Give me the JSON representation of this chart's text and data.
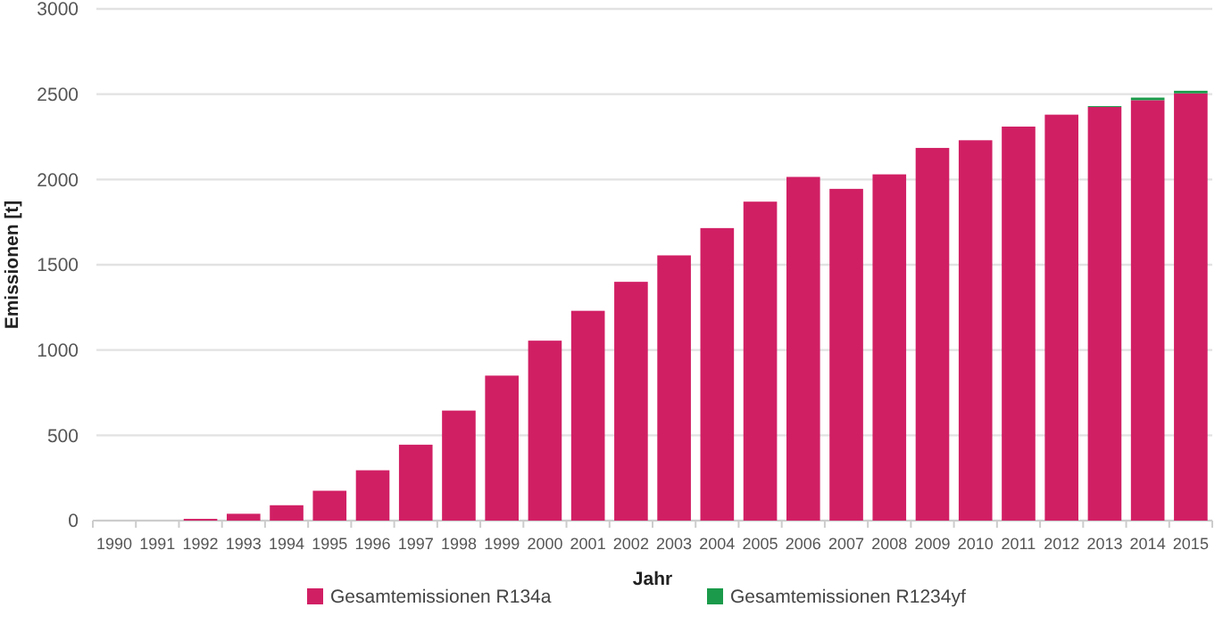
{
  "chart_data": {
    "type": "bar",
    "stacked": true,
    "xlabel": "Jahr",
    "ylabel": "Emissionen [t]",
    "categories": [
      "1990",
      "1991",
      "1992",
      "1993",
      "1994",
      "1995",
      "1996",
      "1997",
      "1998",
      "1999",
      "2000",
      "2001",
      "2002",
      "2003",
      "2004",
      "2005",
      "2006",
      "2007",
      "2008",
      "2009",
      "2010",
      "2011",
      "2012",
      "2013",
      "2014",
      "2015"
    ],
    "series": [
      {
        "name": "Gesamtemissionen R134a",
        "color": "#d11f64",
        "values": [
          0,
          0,
          10,
          40,
          90,
          175,
          295,
          445,
          645,
          850,
          1055,
          1230,
          1400,
          1555,
          1715,
          1870,
          2015,
          1945,
          2030,
          2185,
          2230,
          2310,
          2380,
          2425,
          2465,
          2505
        ]
      },
      {
        "name": "Gesamtemissionen R1234yf",
        "color": "#1a9a4a",
        "values": [
          0,
          0,
          0,
          0,
          0,
          0,
          0,
          0,
          0,
          0,
          0,
          0,
          0,
          0,
          0,
          0,
          0,
          0,
          0,
          0,
          0,
          0,
          0,
          5,
          15,
          15
        ]
      }
    ],
    "ylim": [
      0,
      3000
    ],
    "yticks": [
      0,
      500,
      1000,
      1500,
      2000,
      2500,
      3000
    ],
    "grid": "y",
    "legend": "bottom"
  }
}
